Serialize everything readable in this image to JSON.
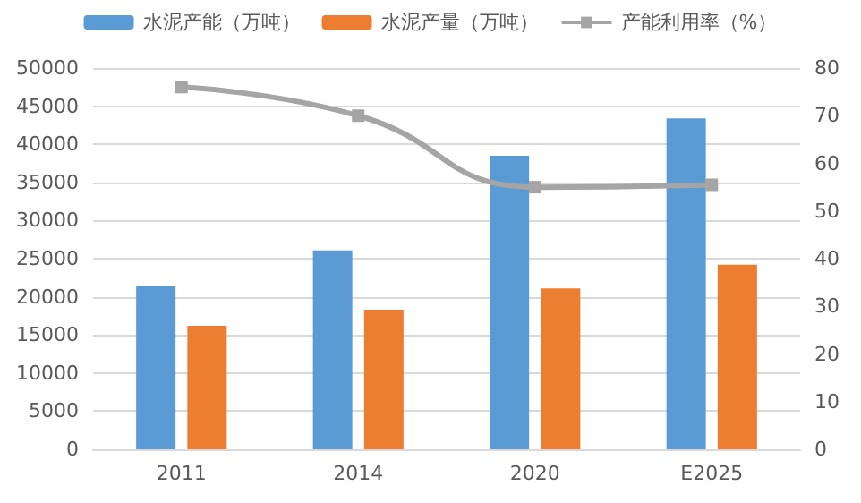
{
  "chart_data": {
    "type": "bar",
    "categories": [
      "2011",
      "2014",
      "2020",
      "E2025"
    ],
    "series": [
      {
        "name": "水泥产能（万吨）",
        "color": "#5b9bd5",
        "values": [
          21400,
          26100,
          38500,
          43400
        ]
      },
      {
        "name": "水泥产量（万吨）",
        "color": "#ed7d31",
        "values": [
          16200,
          18300,
          21100,
          24200
        ]
      },
      {
        "name": "产能利用率（%）",
        "type": "line",
        "axis": "y2",
        "color": "#a5a5a5",
        "marker": "square",
        "values": [
          76,
          70,
          55,
          55.5
        ]
      }
    ],
    "ylim": [
      0,
      50000
    ],
    "yticks": [
      0,
      5000,
      10000,
      15000,
      20000,
      25000,
      30000,
      35000,
      40000,
      45000,
      50000
    ],
    "y2lim": [
      0,
      80
    ],
    "y2ticks": [
      0,
      10,
      20,
      30,
      40,
      50,
      60,
      70,
      80
    ],
    "grid": "y",
    "legend": "top"
  }
}
